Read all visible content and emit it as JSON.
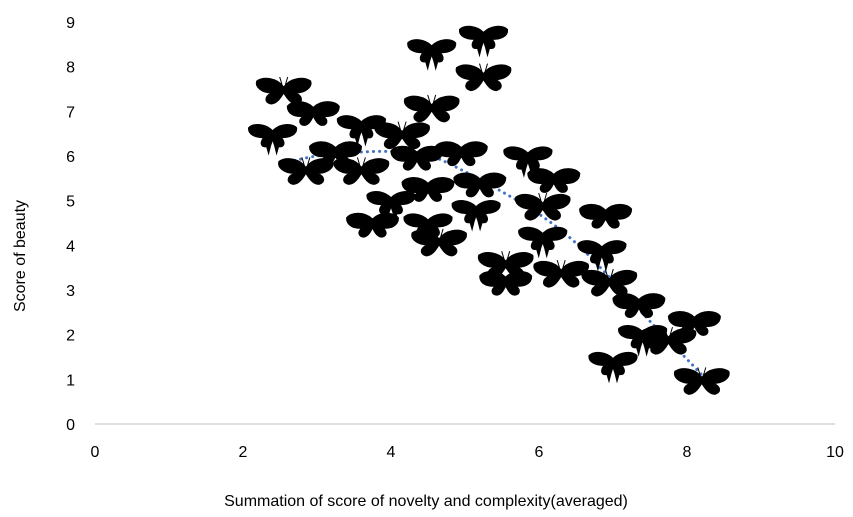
{
  "chart_data": {
    "type": "scatter",
    "title": "",
    "xlabel": "Summation of score of novelty and complexity(averaged)",
    "ylabel": "Score of beauty",
    "xlim": [
      0,
      10
    ],
    "ylim": [
      0,
      9
    ],
    "x_ticks": [
      "0",
      "2",
      "4",
      "6",
      "8",
      "10"
    ],
    "y_ticks": [
      "0",
      "1",
      "2",
      "3",
      "4",
      "5",
      "6",
      "7",
      "8",
      "9"
    ],
    "grid": false,
    "legend": "none",
    "marker": "butterfly-silhouette-icon",
    "marker_color": "#000000",
    "trendline_color": "#4472C4",
    "series": [
      {
        "points": [
          {
            "x": 2.55,
            "y": 7.5
          },
          {
            "x": 2.95,
            "y": 7.0
          },
          {
            "x": 2.4,
            "y": 6.5
          },
          {
            "x": 2.85,
            "y": 5.7
          },
          {
            "x": 3.25,
            "y": 6.1
          },
          {
            "x": 3.6,
            "y": 6.7
          },
          {
            "x": 3.6,
            "y": 5.7
          },
          {
            "x": 3.75,
            "y": 4.5
          },
          {
            "x": 4.0,
            "y": 5.0
          },
          {
            "x": 4.15,
            "y": 6.5
          },
          {
            "x": 4.35,
            "y": 6.0
          },
          {
            "x": 4.55,
            "y": 8.4
          },
          {
            "x": 4.55,
            "y": 7.1
          },
          {
            "x": 4.5,
            "y": 5.3
          },
          {
            "x": 4.5,
            "y": 4.5
          },
          {
            "x": 4.65,
            "y": 4.1
          },
          {
            "x": 4.95,
            "y": 6.1
          },
          {
            "x": 5.25,
            "y": 8.7
          },
          {
            "x": 5.25,
            "y": 7.8
          },
          {
            "x": 5.2,
            "y": 5.4
          },
          {
            "x": 5.15,
            "y": 4.8
          },
          {
            "x": 5.55,
            "y": 3.6
          },
          {
            "x": 5.55,
            "y": 3.2
          },
          {
            "x": 5.85,
            "y": 6.0
          },
          {
            "x": 6.05,
            "y": 4.9
          },
          {
            "x": 6.2,
            "y": 5.5
          },
          {
            "x": 6.05,
            "y": 4.2
          },
          {
            "x": 6.3,
            "y": 3.4
          },
          {
            "x": 6.9,
            "y": 4.7
          },
          {
            "x": 6.85,
            "y": 3.9
          },
          {
            "x": 6.95,
            "y": 3.2
          },
          {
            "x": 7.35,
            "y": 2.7
          },
          {
            "x": 7.4,
            "y": 2.0
          },
          {
            "x": 7.75,
            "y": 1.9
          },
          {
            "x": 8.1,
            "y": 2.3
          },
          {
            "x": 7.0,
            "y": 1.4
          },
          {
            "x": 8.2,
            "y": 1.0
          }
        ]
      }
    ],
    "trendline": {
      "type": "polynomial",
      "points": [
        {
          "x": 2.7,
          "y": 5.9
        },
        {
          "x": 3.0,
          "y": 6.0
        },
        {
          "x": 3.5,
          "y": 6.08
        },
        {
          "x": 4.0,
          "y": 6.1
        },
        {
          "x": 4.5,
          "y": 6.02
        },
        {
          "x": 5.0,
          "y": 5.65
        },
        {
          "x": 5.5,
          "y": 5.2
        },
        {
          "x": 6.0,
          "y": 4.7
        },
        {
          "x": 6.5,
          "y": 4.05
        },
        {
          "x": 7.0,
          "y": 3.2
        },
        {
          "x": 7.5,
          "y": 2.3
        },
        {
          "x": 8.0,
          "y": 1.45
        },
        {
          "x": 8.2,
          "y": 1.1
        }
      ]
    }
  }
}
